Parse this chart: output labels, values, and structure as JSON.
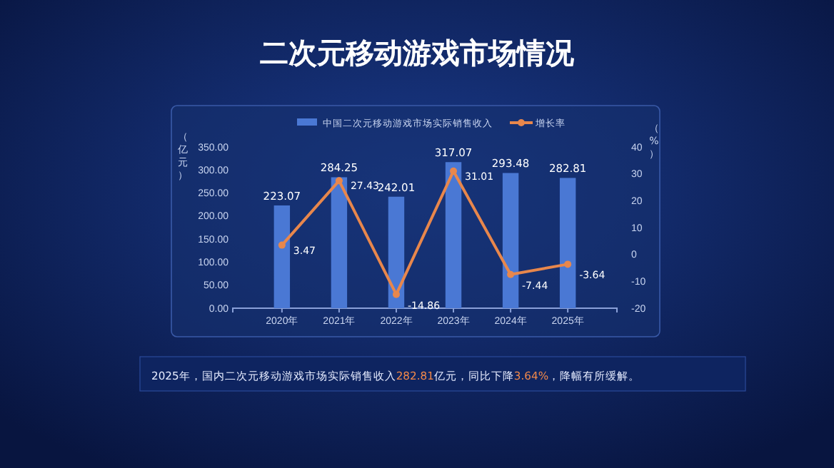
{
  "chart_data": {
    "type": "bar",
    "title": "二次元移动游戏市场情况",
    "categories": [
      "2020年",
      "2021年",
      "2022年",
      "2023年",
      "2024年",
      "2025年"
    ],
    "series": [
      {
        "name": "中国二次元移动游戏市场实际销售收入",
        "color": "#4a78d4",
        "values": [
          223.07,
          284.25,
          242.01,
          317.07,
          293.48,
          282.81
        ]
      },
      {
        "name": "增长率",
        "type": "line",
        "axis": "y2",
        "color": "#e8874c",
        "marker": "circle",
        "values": [
          3.47,
          27.43,
          -14.86,
          31.01,
          -7.44,
          -3.64
        ]
      }
    ],
    "ylabel": "（亿元）",
    "y2label": "（%）",
    "ylim": [
      0,
      350
    ],
    "yticks": [
      {
        "value": 0,
        "label": "0.00"
      },
      {
        "value": 50,
        "label": "50.00"
      },
      {
        "value": 100,
        "label": "100.00"
      },
      {
        "value": 150,
        "label": "150.00"
      },
      {
        "value": 200,
        "label": "200.00"
      },
      {
        "value": 250,
        "label": "250.00"
      },
      {
        "value": 300,
        "label": "300.00"
      },
      {
        "value": 350,
        "label": "350.00"
      }
    ],
    "y2lim": [
      -20,
      40
    ],
    "y2ticks": [
      -20,
      -10,
      0,
      10,
      20,
      30,
      40
    ],
    "data_labels": true,
    "legend": "top",
    "grid": false,
    "annotations": [
      "2025年，国内二次元移动游戏市场实际销售收入282.81亿元，同比下降3.64%，降幅有所缓解。"
    ]
  }
}
